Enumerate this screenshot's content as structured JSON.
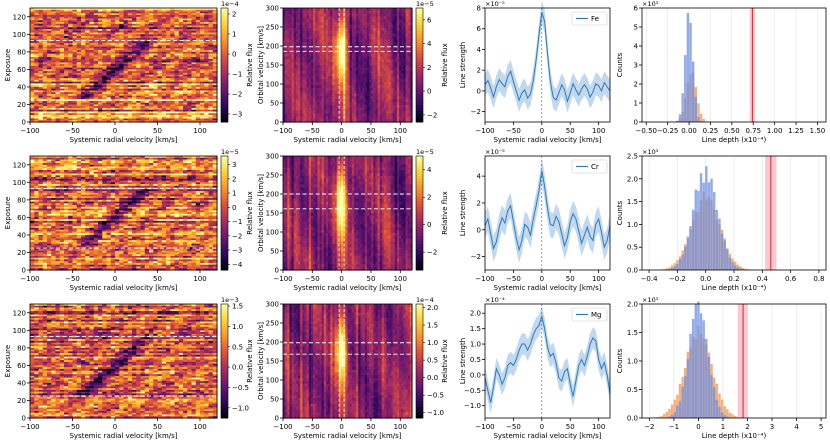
{
  "colors": {
    "line": "#2c7bb6",
    "band": "#a6c8e8",
    "hist_blue": "#6f8fe0",
    "hist_orange": "#f2a261",
    "marker": "#d62728",
    "marker_band": "#f7b6c2",
    "dashed": "#ffffff",
    "cmap": [
      "#000004",
      "#2c0a5e",
      "#6a176e",
      "#a52c60",
      "#dd513a",
      "#f9932a",
      "#fcd338",
      "#fcffa4"
    ]
  },
  "chart_data": [
    {
      "type": "heatmap",
      "row": 0,
      "col": 0,
      "title": "",
      "xlabel": "Systemic radial velocity [km/s]",
      "ylabel": "Exposure",
      "xlim": [
        -100,
        120
      ],
      "ylim": [
        0,
        130
      ],
      "xticks": [
        -100,
        -50,
        0,
        50,
        100
      ],
      "yticks": [
        0,
        20,
        40,
        60,
        80,
        100,
        120
      ],
      "dashed_y": [
        25,
        93
      ],
      "colorbar": {
        "label": "Relative flux",
        "exponent": "1e−4",
        "min": -3.4,
        "max": 2.3,
        "ticks": [
          -3,
          -2,
          -1,
          0,
          1,
          2
        ]
      }
    },
    {
      "type": "heatmap",
      "row": 0,
      "col": 1,
      "title": "",
      "xlabel": "Systemic radial velocity [km/s]",
      "ylabel": "Orbital velocity [km/s]",
      "xlim": [
        -100,
        120
      ],
      "ylim": [
        0,
        300
      ],
      "xticks": [
        -100,
        -50,
        0,
        50,
        100
      ],
      "yticks": [
        0,
        50,
        100,
        150,
        200,
        250,
        300
      ],
      "dashed_y": [
        186,
        198
      ],
      "planet_kp": 193,
      "colorbar": {
        "label": "Relative flux",
        "exponent": "1e−5",
        "min": -2.6,
        "max": 7.0,
        "ticks": [
          -2,
          0,
          2,
          4,
          6
        ]
      }
    },
    {
      "type": "line",
      "row": 0,
      "col": 2,
      "xlabel": "Systemic radial velocity [km/s]",
      "ylabel": "Line strength",
      "xlim": [
        -100,
        120
      ],
      "ylim": [
        -3,
        8
      ],
      "exponent": "×10⁻⁵",
      "xticks": [
        -100,
        -50,
        0,
        50,
        100
      ],
      "yticks": [
        -2,
        0,
        2,
        4,
        6,
        8
      ],
      "legend": "Fe",
      "x": [
        -100,
        -95,
        -90,
        -85,
        -80,
        -75,
        -70,
        -65,
        -60,
        -55,
        -50,
        -45,
        -40,
        -35,
        -30,
        -25,
        -20,
        -15,
        -10,
        -5,
        0,
        5,
        10,
        15,
        20,
        25,
        30,
        35,
        40,
        45,
        50,
        55,
        60,
        65,
        70,
        75,
        80,
        85,
        90,
        95,
        100,
        105,
        110,
        115,
        120
      ],
      "y": [
        0.6,
        1.0,
        0.3,
        -0.6,
        0.4,
        1.1,
        0.7,
        0.4,
        1.4,
        1.9,
        0.9,
        0.0,
        -0.9,
        -0.2,
        0.1,
        -0.7,
        -0.3,
        1.0,
        3.0,
        5.4,
        7.6,
        6.7,
        3.6,
        0.9,
        -0.6,
        -0.9,
        -0.2,
        0.6,
        0.1,
        -1.0,
        -0.2,
        0.7,
        0.1,
        -0.4,
        0.2,
        0.6,
        0.2,
        -0.6,
        -0.1,
        0.7,
        0.5,
        0.0,
        0.8,
        0.4,
        0.0
      ],
      "err": 1.1
    },
    {
      "type": "histogram",
      "row": 0,
      "col": 3,
      "xlabel": "Line depth (x10⁻⁴)",
      "ylabel": "Counts",
      "xlim": [
        -0.55,
        1.6
      ],
      "ylim": [
        0,
        6
      ],
      "exponent": "×10³",
      "xticks": [
        -0.5,
        -0.25,
        0.0,
        0.25,
        0.5,
        0.75,
        1.0,
        1.25,
        1.5
      ],
      "yticks": [
        0,
        1,
        2,
        3,
        4,
        5,
        6
      ],
      "blue": {
        "mean": 0.0,
        "sigma": 0.045,
        "peak": 5.6
      },
      "orange": {
        "mean": 0.03,
        "sigma": 0.06,
        "peak": 2.6
      },
      "marker": 0.74,
      "marker_band": [
        0.71,
        0.77
      ]
    },
    {
      "type": "heatmap",
      "row": 1,
      "col": 0,
      "title": "",
      "xlabel": "Systemic radial velocity [km/s]",
      "ylabel": "Exposure",
      "xlim": [
        -100,
        120
      ],
      "ylim": [
        0,
        130
      ],
      "xticks": [
        -100,
        -50,
        0,
        50,
        100
      ],
      "yticks": [
        0,
        20,
        40,
        60,
        80,
        100,
        120
      ],
      "dashed_y": [
        25,
        93
      ],
      "colorbar": {
        "label": "Relative flux",
        "exponent": "1e−5",
        "min": -4.4,
        "max": 3.6,
        "ticks": [
          -4,
          -3,
          -2,
          -1,
          0,
          1,
          2,
          3
        ]
      }
    },
    {
      "type": "heatmap",
      "row": 1,
      "col": 1,
      "title": "",
      "xlabel": "Systemic radial velocity [km/s]",
      "ylabel": "Orbital velocity [km/s]",
      "xlim": [
        -100,
        120
      ],
      "ylim": [
        0,
        300
      ],
      "xticks": [
        -100,
        -50,
        0,
        50,
        100
      ],
      "yticks": [
        0,
        50,
        100,
        150,
        200,
        250,
        300
      ],
      "dashed_y": [
        161,
        200
      ],
      "planet_kp": 180,
      "colorbar": {
        "label": "Relative flux",
        "exponent": "1e−5",
        "min": -3.3,
        "max": 5.0,
        "ticks": [
          -2,
          0,
          2,
          4
        ]
      }
    },
    {
      "type": "line",
      "row": 1,
      "col": 2,
      "xlabel": "Systemic radial velocity [km/s]",
      "ylabel": "Line strength",
      "xlim": [
        -100,
        120
      ],
      "ylim": [
        -3,
        5.5
      ],
      "exponent": "×10⁻⁵",
      "xticks": [
        -100,
        -50,
        0,
        50,
        100
      ],
      "yticks": [
        -2,
        0,
        2,
        4
      ],
      "legend": "Cr",
      "x": [
        -100,
        -95,
        -90,
        -85,
        -80,
        -75,
        -70,
        -65,
        -60,
        -55,
        -50,
        -45,
        -40,
        -35,
        -30,
        -25,
        -20,
        -15,
        -10,
        -5,
        0,
        5,
        10,
        15,
        20,
        25,
        30,
        35,
        40,
        45,
        50,
        55,
        60,
        65,
        70,
        75,
        80,
        85,
        90,
        95,
        100,
        105,
        110,
        115,
        120
      ],
      "y": [
        0.3,
        0.8,
        -0.3,
        -1.4,
        -0.9,
        0.2,
        0.9,
        0.5,
        1.4,
        1.8,
        0.6,
        -0.6,
        -1.5,
        -0.8,
        0.4,
        0.2,
        -0.4,
        0.8,
        1.8,
        2.9,
        4.4,
        3.2,
        1.6,
        0.4,
        0.3,
        1.0,
        0.6,
        -0.3,
        -1.2,
        -0.6,
        0.6,
        1.2,
        0.8,
        -0.1,
        -1.0,
        -0.4,
        0.2,
        -0.5,
        -0.8,
        0.4,
        0.8,
        -0.2,
        -1.3,
        -0.8,
        0.3
      ],
      "err": 0.95
    },
    {
      "type": "histogram",
      "row": 1,
      "col": 3,
      "xlabel": "Line depth (x10⁻⁴)",
      "ylabel": "Counts",
      "xlim": [
        -0.45,
        0.85
      ],
      "ylim": [
        0,
        2.5
      ],
      "exponent": "×10³",
      "xticks": [
        -0.4,
        -0.2,
        0.0,
        0.2,
        0.4,
        0.6,
        0.8
      ],
      "yticks": [
        0.0,
        0.5,
        1.0,
        1.5,
        2.0,
        2.5
      ],
      "blue": {
        "mean": 0.0,
        "sigma": 0.085,
        "peak": 2.15
      },
      "orange": {
        "mean": 0.0,
        "sigma": 0.1,
        "peak": 1.6
      },
      "marker": 0.46,
      "marker_band": [
        0.42,
        0.5
      ]
    },
    {
      "type": "heatmap",
      "row": 2,
      "col": 0,
      "title": "",
      "xlabel": "Systemic radial velocity [km/s]",
      "ylabel": "Exposure",
      "xlim": [
        -100,
        120
      ],
      "ylim": [
        0,
        130
      ],
      "xticks": [
        -100,
        -50,
        0,
        50,
        100
      ],
      "yticks": [
        0,
        20,
        40,
        60,
        80,
        100,
        120
      ],
      "dashed_y": [
        25,
        93
      ],
      "colorbar": {
        "label": "Relative flux",
        "exponent": "1e−3",
        "min": -1.25,
        "max": 1.55,
        "ticks": [
          -1.0,
          -0.5,
          0.0,
          0.5,
          1.0,
          1.5
        ]
      }
    },
    {
      "type": "heatmap",
      "row": 2,
      "col": 1,
      "title": "",
      "xlabel": "Systemic radial velocity [km/s]",
      "ylabel": "Orbital velocity [km/s]",
      "xlim": [
        -100,
        120
      ],
      "ylim": [
        0,
        300
      ],
      "xticks": [
        -100,
        -50,
        0,
        50,
        100
      ],
      "yticks": [
        0,
        50,
        100,
        150,
        200,
        250,
        300
      ],
      "dashed_y": [
        168,
        198
      ],
      "planet_kp": 183,
      "colorbar": {
        "label": "Relative flux",
        "exponent": "1e−4",
        "min": -1.15,
        "max": 2.1,
        "ticks": [
          -1.0,
          -0.5,
          0.0,
          0.5,
          1.0,
          1.5,
          2.0
        ]
      }
    },
    {
      "type": "line",
      "row": 2,
      "col": 2,
      "xlabel": "Systemic radial velocity [km/s]",
      "ylabel": "Line strength",
      "xlim": [
        -100,
        120
      ],
      "ylim": [
        -1.4,
        2.3
      ],
      "exponent": "×10⁻⁴",
      "xticks": [
        -100,
        -50,
        0,
        50,
        100
      ],
      "yticks": [
        -1.0,
        -0.5,
        0.0,
        0.5,
        1.0,
        1.5,
        2.0
      ],
      "legend": "Mg",
      "x": [
        -100,
        -95,
        -90,
        -85,
        -80,
        -75,
        -70,
        -65,
        -60,
        -55,
        -50,
        -45,
        -40,
        -35,
        -30,
        -25,
        -20,
        -15,
        -10,
        -5,
        0,
        5,
        10,
        15,
        20,
        25,
        30,
        35,
        40,
        45,
        50,
        55,
        60,
        65,
        70,
        75,
        80,
        85,
        90,
        95,
        100,
        105,
        110,
        115,
        120
      ],
      "y": [
        -0.1,
        -0.5,
        -0.9,
        -0.4,
        0.2,
        0.0,
        -0.3,
        -0.1,
        0.3,
        0.4,
        0.3,
        0.5,
        0.8,
        1.0,
        1.0,
        0.8,
        1.0,
        1.3,
        1.5,
        1.6,
        1.9,
        1.5,
        0.9,
        0.6,
        0.7,
        0.4,
        -0.1,
        -0.2,
        0.1,
        0.2,
        -0.3,
        -0.7,
        -0.2,
        0.3,
        0.5,
        0.3,
        0.6,
        1.0,
        1.2,
        1.1,
        0.5,
        0.2,
        0.4,
        0.0,
        -0.6
      ],
      "err": 0.35
    },
    {
      "type": "histogram",
      "row": 2,
      "col": 3,
      "xlabel": "Line depth (x10⁻⁴)",
      "ylabel": "Counts",
      "xlim": [
        -2.3,
        5.2
      ],
      "ylim": [
        0,
        2.0
      ],
      "exponent": "×10³",
      "xticks": [
        -2,
        -1,
        0,
        1,
        2,
        3,
        4,
        5
      ],
      "yticks": [
        0.0,
        0.5,
        1.0,
        1.5,
        2.0
      ],
      "blue": {
        "mean": 0.0,
        "sigma": 0.4,
        "peak": 1.92
      },
      "orange": {
        "mean": 0.0,
        "sigma": 0.55,
        "peak": 1.45
      },
      "marker": 1.82,
      "marker_band": [
        1.6,
        2.0
      ]
    }
  ]
}
